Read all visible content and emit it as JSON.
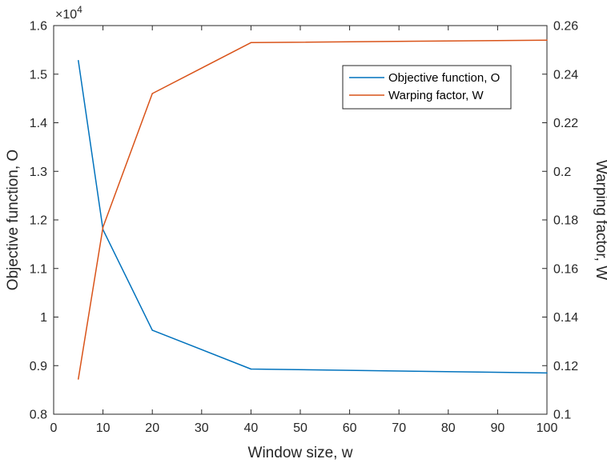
{
  "chart_data": {
    "type": "line",
    "xlabel": "Window size, w",
    "ylabel_left": "Objective function, O",
    "ylabel_right": "Warping factor, W",
    "left_axis_multiplier": "×10",
    "left_axis_exponent": "4",
    "xlim": [
      0,
      100
    ],
    "ylim_left": [
      0.8,
      1.6
    ],
    "ylim_right": [
      0.1,
      0.26
    ],
    "x_ticks": [
      "0",
      "10",
      "20",
      "30",
      "40",
      "50",
      "60",
      "70",
      "80",
      "90",
      "100"
    ],
    "y_left_ticks": [
      "0.8",
      "0.9",
      "1",
      "1.1",
      "1.2",
      "1.3",
      "1.4",
      "1.5",
      "1.6"
    ],
    "y_right_ticks": [
      "0.1",
      "0.12",
      "0.14",
      "0.16",
      "0.18",
      "0.2",
      "0.22",
      "0.24",
      "0.26"
    ],
    "grid": false,
    "legend_position": "top-right",
    "series": [
      {
        "name": "Objective function, O",
        "axis": "left",
        "color": "#0072BD",
        "x": [
          5,
          10,
          20,
          40,
          100
        ],
        "y": [
          1.528,
          1.18,
          0.973,
          0.893,
          0.885
        ]
      },
      {
        "name": "Warping factor, W",
        "axis": "right",
        "color": "#D95319",
        "x": [
          5,
          10,
          20,
          40,
          100
        ],
        "y": [
          0.1145,
          0.177,
          0.232,
          0.253,
          0.254
        ]
      }
    ]
  }
}
